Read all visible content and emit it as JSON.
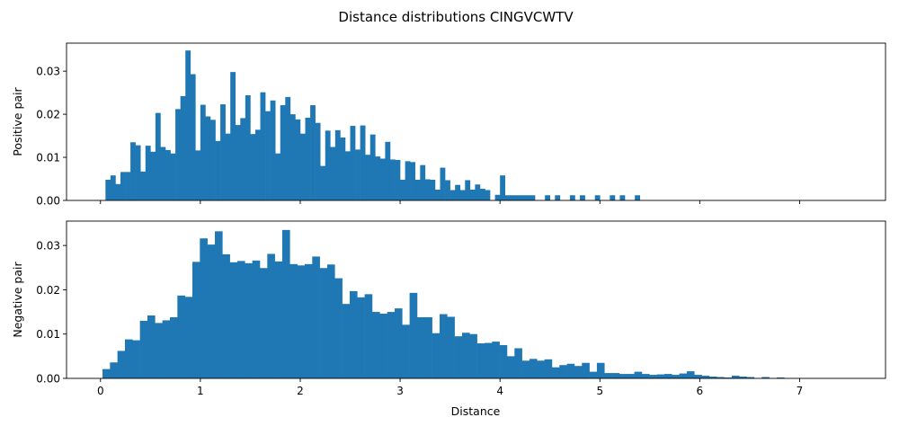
{
  "chart_data": {
    "type": "bar",
    "title": "Distance distributions CINGVCWTV",
    "xlabel": "Distance",
    "xlim": [
      -0.34,
      7.86
    ],
    "xticks": [
      0,
      1,
      2,
      3,
      4,
      5,
      6,
      7
    ],
    "xtick_labels": [
      "0",
      "1",
      "2",
      "3",
      "4",
      "5",
      "6",
      "7"
    ],
    "color": "#1f77b4",
    "panels": [
      {
        "name": "positive",
        "ylabel": "Positive pair",
        "ylim": [
          0,
          0.0365
        ],
        "yticks": [
          0,
          0.01,
          0.02,
          0.03
        ],
        "ytick_labels": [
          "0.00",
          "0.01",
          "0.02",
          "0.03"
        ],
        "show_xtick_labels": false,
        "bin_start": 0.05,
        "bin_width": 0.05,
        "values": [
          0.0048,
          0.0058,
          0.0038,
          0.0066,
          0.0066,
          0.0135,
          0.0128,
          0.0067,
          0.0127,
          0.0113,
          0.0203,
          0.0124,
          0.0117,
          0.0109,
          0.0212,
          0.0242,
          0.0348,
          0.0293,
          0.0116,
          0.0222,
          0.0195,
          0.0187,
          0.0138,
          0.0223,
          0.0155,
          0.0298,
          0.0175,
          0.0191,
          0.0244,
          0.0154,
          0.0164,
          0.0251,
          0.0207,
          0.0232,
          0.0109,
          0.0221,
          0.024,
          0.02,
          0.0188,
          0.0155,
          0.0192,
          0.0221,
          0.018,
          0.008,
          0.0162,
          0.0124,
          0.0163,
          0.0146,
          0.0114,
          0.0173,
          0.0118,
          0.0174,
          0.0106,
          0.0153,
          0.0102,
          0.0097,
          0.0136,
          0.0095,
          0.0094,
          0.0048,
          0.0091,
          0.0089,
          0.0048,
          0.0082,
          0.0049,
          0.0048,
          0.0025,
          0.0076,
          0.0047,
          0.0024,
          0.0036,
          0.0024,
          0.0047,
          0.0025,
          0.0037,
          0.0027,
          0.0024,
          0.0,
          0.0013,
          0.0058,
          0.0012,
          0.0012,
          0.0012,
          0.0012,
          0.0012,
          0.0012,
          0.0,
          0.0,
          0.0012,
          0.0,
          0.0012,
          0.0,
          0.0,
          0.0012,
          0.0,
          0.0012,
          0.0,
          0.0,
          0.0012,
          0.0,
          0.0,
          0.0012,
          0.0,
          0.0012,
          0.0,
          0.0,
          0.0012
        ]
      },
      {
        "name": "negative",
        "ylabel": "Negative pair",
        "ylim": [
          0,
          0.0355
        ],
        "yticks": [
          0,
          0.01,
          0.02,
          0.03
        ],
        "ytick_labels": [
          "0.00",
          "0.01",
          "0.02",
          "0.03"
        ],
        "show_xtick_labels": true,
        "bin_start": 0.02,
        "bin_width": 0.075,
        "values": [
          0.0021,
          0.0036,
          0.0062,
          0.0088,
          0.0086,
          0.013,
          0.0142,
          0.0125,
          0.0131,
          0.0138,
          0.0187,
          0.0184,
          0.0263,
          0.0316,
          0.0302,
          0.0332,
          0.028,
          0.0262,
          0.0265,
          0.026,
          0.0266,
          0.0249,
          0.0281,
          0.0264,
          0.0335,
          0.0258,
          0.0255,
          0.0258,
          0.0275,
          0.0249,
          0.0257,
          0.0226,
          0.0168,
          0.0197,
          0.0183,
          0.019,
          0.015,
          0.0146,
          0.015,
          0.0158,
          0.0121,
          0.0193,
          0.0138,
          0.0138,
          0.0102,
          0.0145,
          0.0139,
          0.0095,
          0.0103,
          0.01,
          0.0079,
          0.008,
          0.0083,
          0.0075,
          0.005,
          0.0068,
          0.004,
          0.0044,
          0.004,
          0.0043,
          0.0025,
          0.003,
          0.0033,
          0.0028,
          0.0035,
          0.0015,
          0.0035,
          0.0012,
          0.0012,
          0.001,
          0.001,
          0.0015,
          0.001,
          0.0008,
          0.0009,
          0.001,
          0.0008,
          0.0011,
          0.0016,
          0.0008,
          0.0006,
          0.0004,
          0.0003,
          0.0002,
          0.0006,
          0.0004,
          0.0003,
          0.0,
          0.0003,
          0.0,
          0.0002,
          0.0,
          0.0,
          0.0,
          0.0,
          0.0,
          0.0,
          0.0,
          0.0,
          0.0,
          0.0,
          0.0,
          0.0,
          0.0,
          0.0,
          0.0,
          0.0,
          0.0,
          0.0,
          0.0,
          0.0005
        ]
      }
    ]
  }
}
